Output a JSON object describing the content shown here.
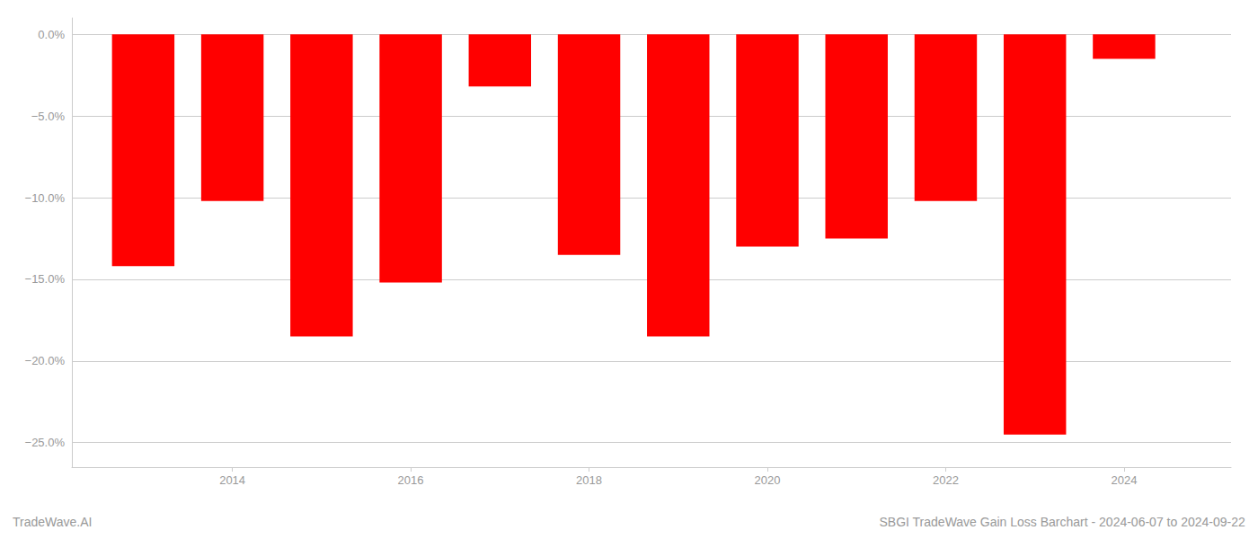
{
  "chart_data": {
    "type": "bar",
    "title": "SBGI TradeWave Gain Loss Barchart - 2024-06-07 to 2024-09-22",
    "annotations": [
      {
        "text": "TradeWave.AI"
      }
    ],
    "x": [
      2013,
      2014,
      2015,
      2016,
      2017,
      2018,
      2019,
      2020,
      2021,
      2022,
      2023,
      2024
    ],
    "values": [
      -14.2,
      -10.2,
      -18.5,
      -15.2,
      -3.2,
      -13.5,
      -18.5,
      -13.0,
      -12.5,
      -10.2,
      -24.5,
      -1.5
    ],
    "color": "#ff0000",
    "xlim": [
      2012.2,
      2025.2
    ],
    "xticks": [
      2014,
      2016,
      2018,
      2020,
      2022,
      2024
    ],
    "ylim": [
      -26.5,
      1.0
    ],
    "yticks": [
      {
        "value": 0.0,
        "label": "0.0%"
      },
      {
        "value": -5.0,
        "label": "−5.0%"
      },
      {
        "value": -10.0,
        "label": "−10.0%"
      },
      {
        "value": -15.0,
        "label": "−15.0%"
      },
      {
        "value": -20.0,
        "label": "−20.0%"
      },
      {
        "value": -25.0,
        "label": "−25.0%"
      }
    ],
    "grid": true
  }
}
